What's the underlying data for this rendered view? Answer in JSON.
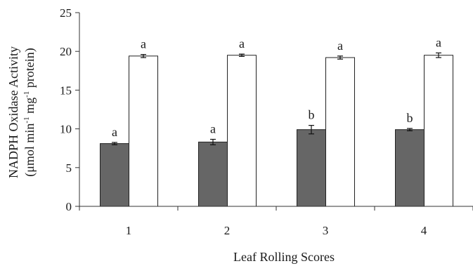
{
  "chart_data": {
    "type": "bar",
    "title": "",
    "xlabel": "Leaf Rolling Scores",
    "ylabel_line1": "NADPH Oxidase Activity",
    "ylabel_line2_parts": [
      "(μmol min",
      "-1",
      " mg",
      "-1",
      " protein)"
    ],
    "categories": [
      "1",
      "2",
      "3",
      "4"
    ],
    "ylim": [
      0,
      25
    ],
    "yticks": [
      0,
      5,
      10,
      15,
      20,
      25
    ],
    "series": [
      {
        "fill": "#666666",
        "values": [
          8.1,
          8.3,
          9.9,
          9.9
        ],
        "errors": [
          0.15,
          0.35,
          0.55,
          0.15
        ],
        "letters": [
          "a",
          "a",
          "b",
          "b"
        ]
      },
      {
        "fill": "#ffffff",
        "values": [
          19.4,
          19.5,
          19.2,
          19.5
        ],
        "errors": [
          0.2,
          0.15,
          0.2,
          0.3
        ],
        "letters": [
          "a",
          "a",
          "a",
          "a"
        ]
      }
    ],
    "grid": false,
    "legend": "none"
  }
}
